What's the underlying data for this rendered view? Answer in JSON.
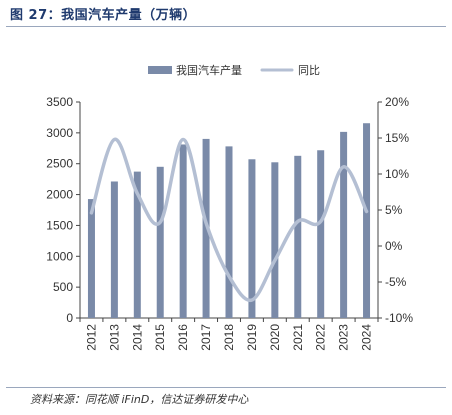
{
  "figure": {
    "title": "图 27：我国汽车产量（万辆）",
    "source": "资料来源：同花顺 iFinD，信达证券研发中心"
  },
  "chart_data": {
    "type": "bar",
    "categories": [
      "2012",
      "2013",
      "2014",
      "2015",
      "2016",
      "2017",
      "2018",
      "2019",
      "2020",
      "2021",
      "2022",
      "2023",
      "2024"
    ],
    "series": [
      {
        "name": "我国汽车产量",
        "type": "bar",
        "axis": "left",
        "color": "#7a8aa8",
        "values": [
          1927,
          2212,
          2372,
          2450,
          2812,
          2902,
          2781,
          2572,
          2523,
          2628,
          2718,
          3016,
          3156
        ]
      },
      {
        "name": "同比",
        "type": "line",
        "axis": "right",
        "color": "#b4bfd3",
        "values": [
          4.6,
          14.8,
          7.3,
          3.3,
          14.8,
          3.2,
          -4.2,
          -7.5,
          -2.0,
          3.4,
          3.4,
          11.0,
          4.8
        ]
      }
    ],
    "y_left": {
      "min": 0,
      "max": 3500,
      "ticks": [
        0,
        500,
        1000,
        1500,
        2000,
        2500,
        3000,
        3500
      ]
    },
    "y_right": {
      "min": -10,
      "max": 20,
      "ticks": [
        "-10%",
        "-5%",
        "0%",
        "5%",
        "10%",
        "15%",
        "20%"
      ]
    },
    "legend_position": "top-center",
    "grid": false
  }
}
